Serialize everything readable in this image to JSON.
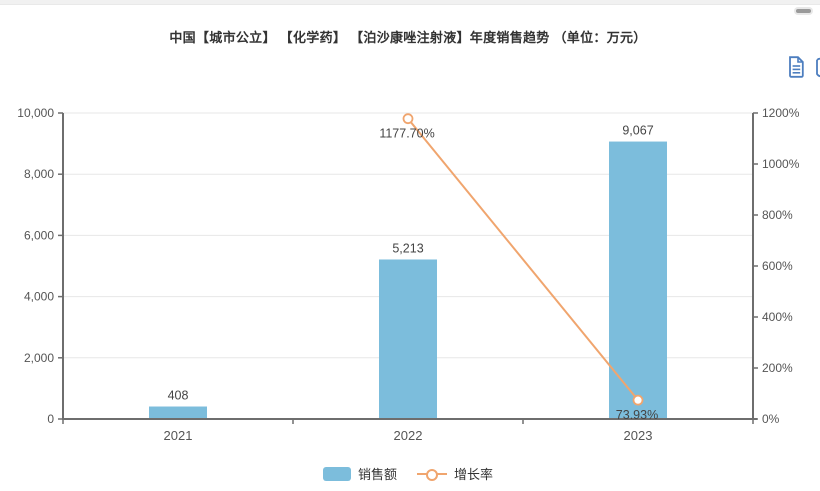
{
  "header": {
    "title": "中国【城市公立】 【化学药】 【泊沙康唑注射液】年度销售趋势 （单位：万元）"
  },
  "toolbox": {
    "icons": [
      "minimize-dash-icon",
      "data-view-icon",
      "clipped-edge-icon"
    ]
  },
  "chart_data": {
    "type": "combo-bar-line",
    "title": "中国【城市公立】 【化学药】 【泊沙康唑注射液】年度销售趋势 （单位：万元）",
    "categories": [
      "2021",
      "2022",
      "2023"
    ],
    "series": [
      {
        "name": "销售额",
        "type": "bar",
        "axis": "left",
        "color": "#7cbddc",
        "values": [
          408,
          5213,
          9067
        ],
        "labels": [
          "408",
          "5,213",
          "9,067"
        ]
      },
      {
        "name": "增长率",
        "type": "line",
        "axis": "right",
        "color": "#f0a56e",
        "values": [
          null,
          1177.7,
          73.93
        ],
        "labels": [
          null,
          "1177.70%",
          "73.93%"
        ]
      }
    ],
    "left_axis": {
      "min": 0,
      "max": 10000,
      "tick_values": [
        0,
        2000,
        4000,
        6000,
        8000,
        10000
      ],
      "tick_labels": [
        "0",
        "2,000",
        "4,000",
        "6,000",
        "8,000",
        "10,000"
      ]
    },
    "right_axis": {
      "min": 0,
      "max": 1200,
      "tick_values": [
        0,
        200,
        400,
        600,
        800,
        1000,
        1200
      ],
      "tick_labels": [
        "0%",
        "200%",
        "400%",
        "600%",
        "800%",
        "1000%",
        "1200%"
      ]
    },
    "grid": true,
    "legend_position": "bottom",
    "colors": {
      "grid": "#e7e7e7",
      "axis": "#6e6e6e",
      "tick_label": "#555555",
      "data_label": "#444444",
      "title": "#333333",
      "icon": "#4d7ebf",
      "dash": "#9a9a9a"
    }
  }
}
